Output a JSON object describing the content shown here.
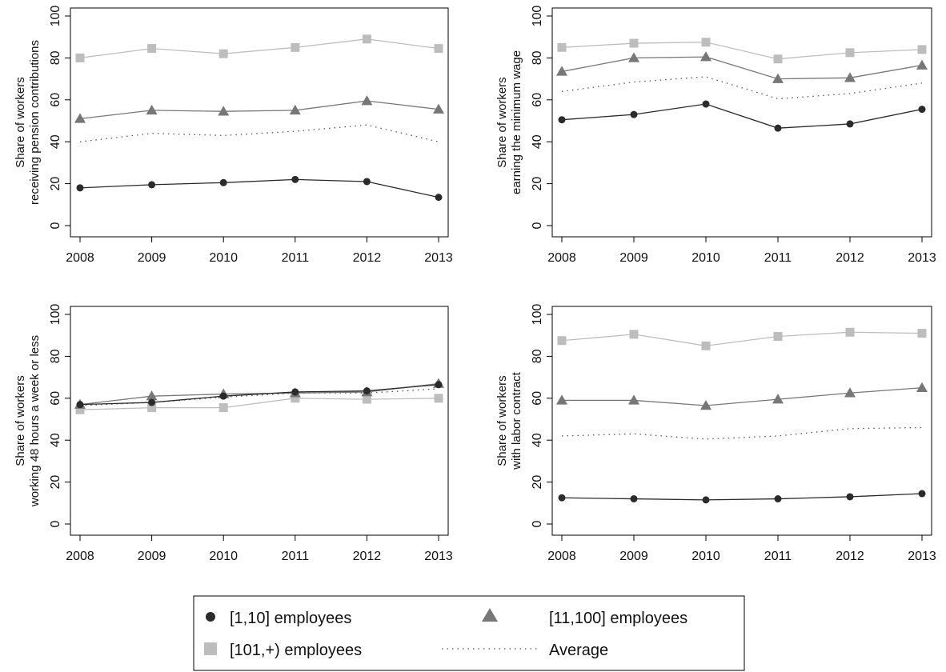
{
  "chart_data": [
    {
      "type": "line",
      "ylabel_lines": [
        "Share of workers",
        "receiving pension contributions"
      ],
      "x": [
        2008,
        2009,
        2010,
        2011,
        2012,
        2013
      ],
      "ylim": [
        0,
        100
      ],
      "yticks": [
        0,
        20,
        40,
        60,
        80,
        100
      ],
      "grid": false,
      "series": [
        {
          "name": "[1,10] employees",
          "values": [
            18,
            19.5,
            20.5,
            22,
            21,
            13.5
          ]
        },
        {
          "name": "[11,100] employees",
          "values": [
            51,
            55,
            54.5,
            55,
            59.5,
            55.5
          ]
        },
        {
          "name": "[101,+) employees",
          "values": [
            80,
            84.5,
            82,
            85,
            89,
            84.5
          ]
        },
        {
          "name": "Average",
          "values": [
            40,
            44,
            43,
            45,
            48,
            40
          ]
        }
      ]
    },
    {
      "type": "line",
      "ylabel_lines": [
        "Share of workers",
        "earning the minimum wage"
      ],
      "x": [
        2008,
        2009,
        2010,
        2011,
        2012,
        2013
      ],
      "ylim": [
        0,
        100
      ],
      "yticks": [
        0,
        20,
        40,
        60,
        80,
        100
      ],
      "grid": false,
      "series": [
        {
          "name": "[1,10] employees",
          "values": [
            50.5,
            53,
            58,
            46.5,
            48.5,
            55.5
          ]
        },
        {
          "name": "[11,100] employees",
          "values": [
            73.5,
            80,
            80.5,
            70,
            70.5,
            76.5
          ]
        },
        {
          "name": "[101,+) employees",
          "values": [
            85,
            87,
            87.5,
            79.5,
            82.5,
            84
          ]
        },
        {
          "name": "Average",
          "values": [
            64,
            68.5,
            71,
            60.5,
            63,
            68
          ]
        }
      ]
    },
    {
      "type": "line",
      "ylabel_lines": [
        "Share of workers",
        "working 48 hours a week or less"
      ],
      "x": [
        2008,
        2009,
        2010,
        2011,
        2012,
        2013
      ],
      "ylim": [
        0,
        100
      ],
      "yticks": [
        0,
        20,
        40,
        60,
        80,
        100
      ],
      "grid": false,
      "series": [
        {
          "name": "[1,10] employees",
          "values": [
            57,
            58,
            61,
            63,
            63.5,
            66.5
          ]
        },
        {
          "name": "[11,100] employees",
          "values": [
            57,
            61,
            62,
            62.5,
            63,
            67
          ]
        },
        {
          "name": "[101,+) employees",
          "values": [
            54.5,
            55.5,
            55.5,
            60,
            59.5,
            60
          ]
        },
        {
          "name": "Average",
          "values": [
            56.5,
            58,
            60.5,
            62.5,
            62.5,
            64.5
          ]
        }
      ]
    },
    {
      "type": "line",
      "ylabel_lines": [
        "Share of workers",
        "with labor contract"
      ],
      "x": [
        2008,
        2009,
        2010,
        2011,
        2012,
        2013
      ],
      "ylim": [
        0,
        100
      ],
      "yticks": [
        0,
        20,
        40,
        60,
        80,
        100
      ],
      "grid": false,
      "series": [
        {
          "name": "[1,10] employees",
          "values": [
            12.5,
            12,
            11.5,
            12,
            13,
            14.5
          ]
        },
        {
          "name": "[11,100] employees",
          "values": [
            59,
            59,
            56.5,
            59.5,
            62.5,
            65
          ]
        },
        {
          "name": "[101,+) employees",
          "values": [
            87.5,
            90.5,
            85,
            89.5,
            91.5,
            91
          ]
        },
        {
          "name": "Average",
          "values": [
            42,
            43,
            40.5,
            42,
            45.5,
            46
          ]
        }
      ]
    }
  ],
  "legend": {
    "placement": "bottom-center",
    "items": [
      {
        "label": "[1,10] employees",
        "marker": "circle"
      },
      {
        "label": "[11,100] employees",
        "marker": "triangle"
      },
      {
        "label": "[101,+) employees",
        "marker": "square"
      },
      {
        "label": "Average",
        "marker": "dotted-line"
      }
    ]
  },
  "colors": {
    "[1,10] employees": "#2b2b2b",
    "[11,100] employees": "#777777",
    "[101,+) employees": "#bdbdbd",
    "Average": "#555555"
  }
}
